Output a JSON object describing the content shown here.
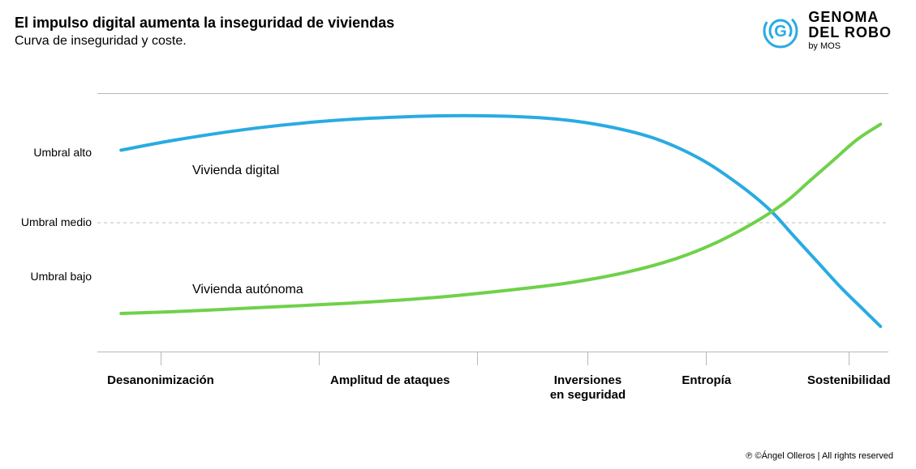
{
  "header": {
    "title": "El impulso digital aumenta la inseguridad de viviendas",
    "subtitle": "Curva de inseguridad y coste."
  },
  "logo": {
    "line1": "GENOMA",
    "line2": "DEL ROBO",
    "line3": "by MOS",
    "icon_color": "#29abe2",
    "icon_letter": "G"
  },
  "chart": {
    "type": "line",
    "plot": {
      "x_range": [
        0,
        100
      ],
      "y_range": [
        0,
        100
      ],
      "background_color": "#ffffff",
      "top_rule_color": "#b8b8b8",
      "bottom_rule_color": "#b8b8b8",
      "mid_line": {
        "y": 50,
        "color": "#bfbfbf",
        "dash": "4 4",
        "width": 1
      }
    },
    "y_labels": [
      {
        "text": "Umbral alto",
        "y": 77
      },
      {
        "text": "Umbral medio",
        "y": 50
      },
      {
        "text": "Umbral bajo",
        "y": 29
      }
    ],
    "x_ticks": {
      "positions": [
        8,
        28,
        48,
        62,
        77,
        95
      ],
      "labels": [
        {
          "x": 8,
          "text": "Desanonimización"
        },
        {
          "x": 37,
          "text": "Amplitud de ataques"
        },
        {
          "x": 62,
          "text": "Inversiones\nen seguridad"
        },
        {
          "x": 77,
          "text": "Entropía"
        },
        {
          "x": 95,
          "text": "Sostenibilidad"
        }
      ],
      "tick_len": 16,
      "tick_color": "#b8b8b8"
    },
    "series": [
      {
        "name": "Vivienda digital",
        "label_pos": {
          "x": 12,
          "y": 70
        },
        "color": "#29abe2",
        "line_width": 4,
        "points": [
          [
            3,
            78
          ],
          [
            10,
            82
          ],
          [
            20,
            86.5
          ],
          [
            30,
            89.5
          ],
          [
            40,
            91
          ],
          [
            48,
            91.3
          ],
          [
            56,
            90.5
          ],
          [
            63,
            88
          ],
          [
            70,
            83
          ],
          [
            76,
            75
          ],
          [
            81,
            65
          ],
          [
            85,
            55
          ],
          [
            88,
            45
          ],
          [
            91,
            35
          ],
          [
            94,
            25
          ],
          [
            97,
            16
          ],
          [
            99,
            10
          ]
        ]
      },
      {
        "name": "Vivienda autónoma",
        "label_pos": {
          "x": 12,
          "y": 24
        },
        "color": "#6fd14a",
        "line_width": 4,
        "points": [
          [
            3,
            15
          ],
          [
            12,
            16
          ],
          [
            22,
            17.5
          ],
          [
            32,
            19
          ],
          [
            42,
            21
          ],
          [
            52,
            24
          ],
          [
            60,
            27
          ],
          [
            67,
            31
          ],
          [
            73,
            36
          ],
          [
            78,
            42
          ],
          [
            83,
            50
          ],
          [
            87,
            58
          ],
          [
            90,
            66
          ],
          [
            93,
            74
          ],
          [
            96,
            82
          ],
          [
            99,
            88
          ]
        ]
      }
    ]
  },
  "footer": {
    "text": "℗ ©Ángel Olleros | All rights reserved"
  },
  "style": {
    "title_fontsize": 18,
    "subtitle_fontsize": 16,
    "y_label_fontsize": 14,
    "x_label_fontsize": 15,
    "series_label_fontsize": 16,
    "font_family": "Arial"
  }
}
